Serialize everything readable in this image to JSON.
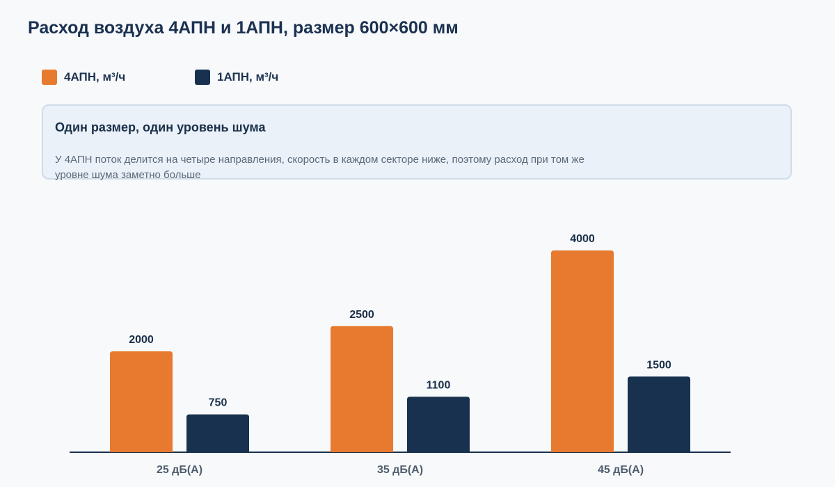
{
  "page": {
    "title": "Расход воздуха 4АПН и 1АПН, размер 600×600 мм"
  },
  "legend": {
    "items": [
      {
        "label": "4АПН, м³/ч",
        "color": "#e87a2f"
      },
      {
        "label": "1АПН, м³/ч",
        "color": "#18314e"
      }
    ]
  },
  "note": {
    "title": "Один размер, один уровень шума",
    "text": "У 4АПН поток делится на четыре направления, скорость в каждом секторе ниже, поэтому расход при том же уровне шума заметно больше"
  },
  "chart_data": {
    "type": "bar",
    "title": "Расход воздуха 4АПН и 1АПН, размер 600×600 мм",
    "categories": [
      "25 дБ(А)",
      "35 дБ(А)",
      "45 дБ(А)"
    ],
    "series": [
      {
        "name": "4АПН, м³/ч",
        "values": [
          2000,
          2500,
          4000
        ],
        "color": "#e87a2f"
      },
      {
        "name": "1АПН, м³/ч",
        "values": [
          750,
          1100,
          1500
        ],
        "color": "#18314e"
      }
    ],
    "xlabel": "",
    "ylabel": "",
    "ylim": [
      0,
      4000
    ],
    "grid": false,
    "data_labels": true,
    "legend_position": "top-left"
  }
}
